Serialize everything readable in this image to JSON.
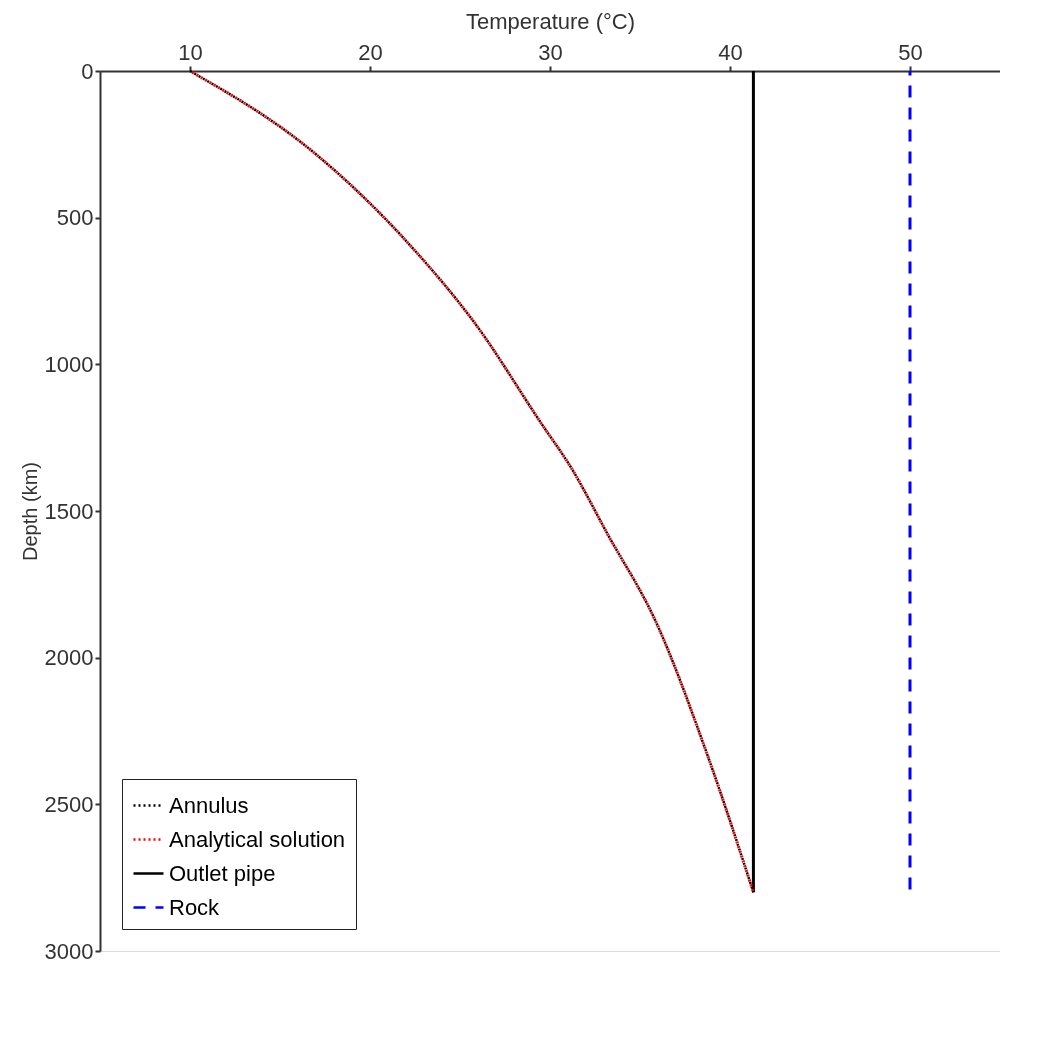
{
  "chart_data": {
    "type": "line",
    "xlabel": "Temperature (°C)",
    "ylabel": "Depth (km)",
    "xlim": [
      5,
      55
    ],
    "xticks": [
      10,
      20,
      30,
      40,
      50
    ],
    "ylim": [
      3000,
      0
    ],
    "yticks": [
      0,
      500,
      1000,
      1500,
      2000,
      2500,
      3000
    ],
    "grid": false,
    "legend": "bottom left",
    "series": [
      {
        "name": "Annulus",
        "color": "#000000",
        "line_style": "dotted",
        "x": [
          10,
          17.0,
          22.3,
          25.9,
          29.5,
          31.2,
          33.2,
          35.9,
          38.7,
          41.3
        ],
        "values": [
          0,
          284,
          599,
          866,
          1200,
          1355,
          1579,
          1880,
          2324,
          2800
        ]
      },
      {
        "name": "Analytical solution",
        "color": "#ff0000",
        "line_style": "dotted",
        "x": [
          10,
          17.0,
          22.3,
          25.9,
          29.5,
          31.2,
          33.2,
          35.9,
          38.7,
          41.3
        ],
        "values": [
          0,
          284,
          599,
          866,
          1200,
          1355,
          1579,
          1880,
          2324,
          2800
        ]
      },
      {
        "name": "Outlet pipe",
        "color": "#000000",
        "line_style": "solid",
        "x": [
          41.3,
          41.3
        ],
        "values": [
          0,
          2800
        ]
      },
      {
        "name": "Rock",
        "color": "#0000ff",
        "line_style": "dashed",
        "x": [
          50,
          50
        ],
        "values": [
          0,
          2800
        ]
      }
    ]
  }
}
